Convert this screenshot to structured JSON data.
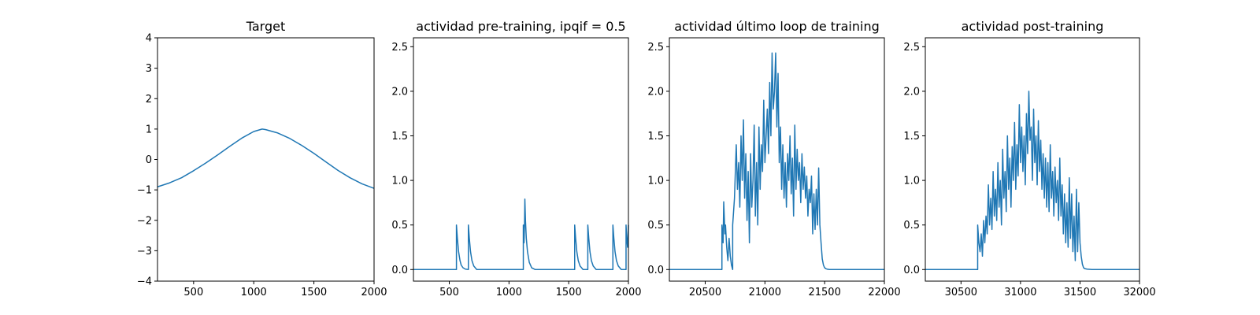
{
  "chart_data": [
    {
      "type": "line",
      "title": "Target",
      "xlabel": "",
      "ylabel": "",
      "xlim": [
        200,
        2000
      ],
      "ylim": [
        -4,
        4
      ],
      "xticks": [
        500,
        1000,
        1500,
        2000
      ],
      "yticks": [
        -4,
        -3,
        -2,
        -1,
        0,
        1,
        2,
        3,
        4
      ],
      "xtick_labels": [
        "500",
        "1000",
        "1500",
        "2000"
      ],
      "ytick_labels": [
        "−4",
        "−3",
        "−2",
        "−1",
        "0",
        "1",
        "2",
        "3",
        "4"
      ],
      "grid": false,
      "color": "#1f77b4",
      "series": [
        {
          "x": [
            200,
            300,
            400,
            500,
            600,
            700,
            800,
            900,
            1000,
            1070,
            1100,
            1200,
            1300,
            1400,
            1500,
            1600,
            1700,
            1800,
            1900,
            2000
          ],
          "y": [
            -0.9,
            -0.77,
            -0.6,
            -0.37,
            -0.12,
            0.15,
            0.43,
            0.7,
            0.92,
            1.0,
            0.98,
            0.87,
            0.69,
            0.46,
            0.2,
            -0.08,
            -0.36,
            -0.6,
            -0.8,
            -0.95
          ]
        }
      ]
    },
    {
      "type": "line",
      "title": "actividad pre-training, ipqif = 0.5",
      "xlabel": "",
      "ylabel": "",
      "xlim": [
        200,
        2000
      ],
      "ylim": [
        -0.13,
        2.6
      ],
      "xticks": [
        500,
        1000,
        1500,
        2000
      ],
      "yticks": [
        0,
        0.5,
        1.0,
        1.5,
        2.0,
        2.5
      ],
      "xtick_labels": [
        "500",
        "1000",
        "1500",
        "2000"
      ],
      "ytick_labels": [
        "0.0",
        "0.5",
        "1.0",
        "1.5",
        "2.0",
        "2.5"
      ],
      "grid": false,
      "color": "#1f77b4",
      "series": [
        {
          "x": [
            200,
            560,
            560,
            568,
            578,
            590,
            600,
            615,
            635,
            660,
            660,
            668,
            678,
            690,
            705,
            730,
            1120,
            1120,
            1126,
            1130,
            1133,
            1138,
            1145,
            1155,
            1170,
            1190,
            1220,
            1550,
            1550,
            1558,
            1568,
            1580,
            1595,
            1620,
            1660,
            1660,
            1668,
            1678,
            1690,
            1705,
            1730,
            1870,
            1870,
            1878,
            1888,
            1900,
            1915,
            1940,
            1980,
            1980,
            1986,
            1993,
            2000
          ],
          "y": [
            0,
            0,
            0.5,
            0.35,
            0.2,
            0.1,
            0.05,
            0.02,
            0.005,
            0,
            0.5,
            0.35,
            0.2,
            0.1,
            0.04,
            0,
            0,
            0.5,
            0.3,
            0.5,
            0.79,
            0.55,
            0.35,
            0.2,
            0.08,
            0.02,
            0,
            0,
            0.5,
            0.35,
            0.2,
            0.1,
            0.04,
            0,
            0,
            0.5,
            0.35,
            0.2,
            0.1,
            0.04,
            0,
            0,
            0.5,
            0.35,
            0.2,
            0.1,
            0.04,
            0,
            0,
            0.5,
            0.35,
            0.25,
            0.5
          ]
        }
      ]
    },
    {
      "type": "line",
      "title": "actividad último loop de training",
      "xlabel": "",
      "ylabel": "",
      "xlim": [
        20200,
        22000
      ],
      "ylim": [
        -0.13,
        2.6
      ],
      "xticks": [
        20500,
        21000,
        21500,
        22000
      ],
      "yticks": [
        0,
        0.5,
        1.0,
        1.5,
        2.0,
        2.5
      ],
      "xtick_labels": [
        "20500",
        "21000",
        "21500",
        "22000"
      ],
      "ytick_labels": [
        "0.0",
        "0.5",
        "1.0",
        "1.5",
        "2.0",
        "2.5"
      ],
      "grid": false,
      "color": "#1f77b4",
      "series": [
        {
          "x": [
            20200,
            20640,
            20640,
            20650,
            20655,
            20665,
            20670,
            20680,
            20690,
            20700,
            20710,
            20720,
            20730,
            20730,
            20745,
            20760,
            20770,
            20780,
            20790,
            20800,
            20810,
            20820,
            20830,
            20840,
            20850,
            20860,
            20870,
            20880,
            20890,
            20900,
            20910,
            20920,
            20930,
            20940,
            20950,
            20960,
            20970,
            20980,
            20990,
            21000,
            21010,
            21020,
            21030,
            21040,
            21050,
            21060,
            21070,
            21080,
            21090,
            21100,
            21110,
            21120,
            21130,
            21140,
            21150,
            21160,
            21170,
            21180,
            21190,
            21200,
            21210,
            21220,
            21230,
            21240,
            21250,
            21260,
            21270,
            21280,
            21290,
            21300,
            21310,
            21320,
            21330,
            21340,
            21350,
            21360,
            21370,
            21380,
            21390,
            21400,
            21410,
            21420,
            21430,
            21440,
            21450,
            21460,
            21470,
            21480,
            21490,
            21500,
            21510,
            21520,
            21540,
            21570,
            21620,
            22000
          ],
          "y": [
            0,
            0,
            0.5,
            0.3,
            0.76,
            0.4,
            0.5,
            0.25,
            0.1,
            0.35,
            0.15,
            0.05,
            0,
            0.5,
            0.8,
            1.4,
            0.9,
            1.2,
            0.7,
            1.5,
            1.0,
            1.68,
            0.8,
            1.3,
            0.55,
            1.1,
            0.3,
            1.3,
            0.7,
            1.0,
            1.62,
            0.6,
            1.2,
            0.5,
            1.6,
            0.9,
            1.4,
            1.1,
            1.9,
            1.2,
            1.5,
            1.8,
            1.3,
            2.1,
            1.5,
            2.43,
            1.8,
            2.0,
            2.43,
            1.6,
            2.2,
            1.2,
            1.6,
            0.9,
            1.4,
            0.8,
            1.2,
            0.7,
            1.3,
            1.0,
            1.5,
            0.85,
            1.25,
            0.6,
            1.62,
            0.9,
            1.35,
            1.0,
            1.2,
            0.75,
            1.3,
            0.9,
            1.15,
            0.8,
            1.05,
            0.6,
            0.9,
            0.75,
            1.05,
            0.4,
            0.85,
            0.45,
            0.9,
            0.5,
            1.14,
            0.5,
            0.3,
            0.12,
            0.05,
            0.02,
            0.01,
            0.005,
            0,
            0,
            0,
            0
          ]
        }
      ]
    },
    {
      "type": "line",
      "title": "actividad post-training",
      "xlabel": "",
      "ylabel": "",
      "xlim": [
        30200,
        32000
      ],
      "ylim": [
        -0.13,
        2.6
      ],
      "xticks": [
        30500,
        31000,
        31500,
        32000
      ],
      "yticks": [
        0,
        0.5,
        1.0,
        1.5,
        2.0,
        2.5
      ],
      "xtick_labels": [
        "30500",
        "31000",
        "31500",
        "32000"
      ],
      "ytick_labels": [
        "0.0",
        "0.5",
        "1.0",
        "1.5",
        "2.0",
        "2.5"
      ],
      "grid": false,
      "color": "#1f77b4",
      "series": [
        {
          "x": [
            30200,
            30640,
            30640,
            30650,
            30660,
            30670,
            30680,
            30690,
            30700,
            30710,
            30720,
            30730,
            30740,
            30750,
            30760,
            30770,
            30780,
            30790,
            30800,
            30810,
            30820,
            30830,
            30840,
            30850,
            30860,
            30870,
            30880,
            30890,
            30900,
            30910,
            30920,
            30930,
            30940,
            30950,
            30960,
            30970,
            30980,
            30990,
            31000,
            31010,
            31020,
            31030,
            31040,
            31050,
            31060,
            31070,
            31080,
            31090,
            31100,
            31110,
            31120,
            31130,
            31140,
            31150,
            31160,
            31170,
            31180,
            31190,
            31200,
            31210,
            31220,
            31230,
            31240,
            31250,
            31260,
            31270,
            31280,
            31290,
            31300,
            31310,
            31320,
            31330,
            31340,
            31350,
            31360,
            31370,
            31380,
            31390,
            31400,
            31410,
            31420,
            31430,
            31440,
            31450,
            31460,
            31470,
            31480,
            31490,
            31500,
            31510,
            31520,
            31530,
            31540,
            31560,
            31600,
            32000
          ],
          "y": [
            0,
            0,
            0.5,
            0.3,
            0.2,
            0.4,
            0.15,
            0.55,
            0.3,
            0.6,
            0.4,
            0.95,
            0.5,
            0.8,
            0.45,
            1.1,
            0.6,
            0.9,
            0.55,
            1.2,
            0.7,
            1.0,
            0.5,
            1.35,
            0.8,
            1.1,
            0.65,
            1.5,
            0.9,
            1.25,
            0.7,
            1.38,
            1.0,
            1.65,
            0.9,
            1.4,
            1.05,
            1.85,
            1.2,
            1.6,
            1.1,
            1.5,
            0.95,
            1.75,
            1.3,
            2.0,
            1.45,
            1.6,
            1.0,
            1.8,
            1.2,
            1.5,
            0.95,
            1.67,
            1.1,
            1.45,
            0.9,
            1.3,
            0.8,
            1.25,
            0.7,
            1.2,
            0.65,
            1.4,
            0.8,
            1.1,
            0.6,
            1.15,
            0.75,
            1.0,
            0.55,
            1.25,
            0.6,
            0.95,
            0.4,
            0.85,
            0.3,
            0.75,
            0.25,
            1.03,
            0.35,
            0.85,
            0.2,
            0.6,
            0.1,
            0.9,
            0.2,
            0.75,
            0.3,
            0.15,
            0.06,
            0.02,
            0.01,
            0.005,
            0,
            0
          ]
        }
      ]
    }
  ]
}
